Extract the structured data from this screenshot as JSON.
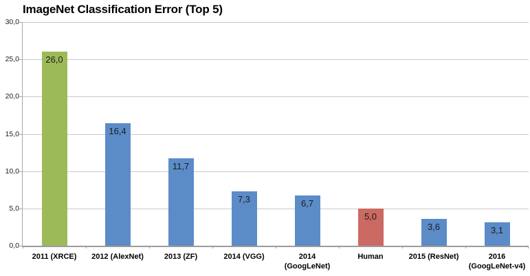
{
  "chart_data": {
    "type": "bar",
    "title": "ImageNet Classification Error (Top 5)",
    "categories": [
      "2011 (XRCE)",
      "2012 (AlexNet)",
      "2013 (ZF)",
      "2014 (VGG)",
      "2014\n(GoogLeNet)",
      "Human",
      "2015 (ResNet)",
      "2016\n(GoogLeNet-v4)"
    ],
    "values": [
      26.0,
      16.4,
      11.7,
      7.3,
      6.7,
      5.0,
      3.6,
      3.1
    ],
    "data_labels": [
      "26,0",
      "16,4",
      "11,7",
      "7,3",
      "6,7",
      "5,0",
      "3,6",
      "3,1"
    ],
    "bar_colors": [
      "#9dba59",
      "#5b8cc8",
      "#5b8cc8",
      "#5b8cc8",
      "#5b8cc8",
      "#ca6a63",
      "#5b8cc8",
      "#5b8cc8"
    ],
    "xlabel": "",
    "ylabel": "",
    "ylim": [
      0,
      30
    ],
    "ytick_interval": 5,
    "ytick_labels": [
      "0,0",
      "5,0",
      "10,0",
      "15,0",
      "20,0",
      "25,0",
      "30,0"
    ],
    "grid": true,
    "legend": false
  },
  "colors": {
    "highlight_green": "#9dba59",
    "series_blue": "#5b8cc8",
    "human_red": "#ca6a63",
    "gridline": "#c9c9c9",
    "axis": "#9b9b9b",
    "text": "#000000"
  }
}
